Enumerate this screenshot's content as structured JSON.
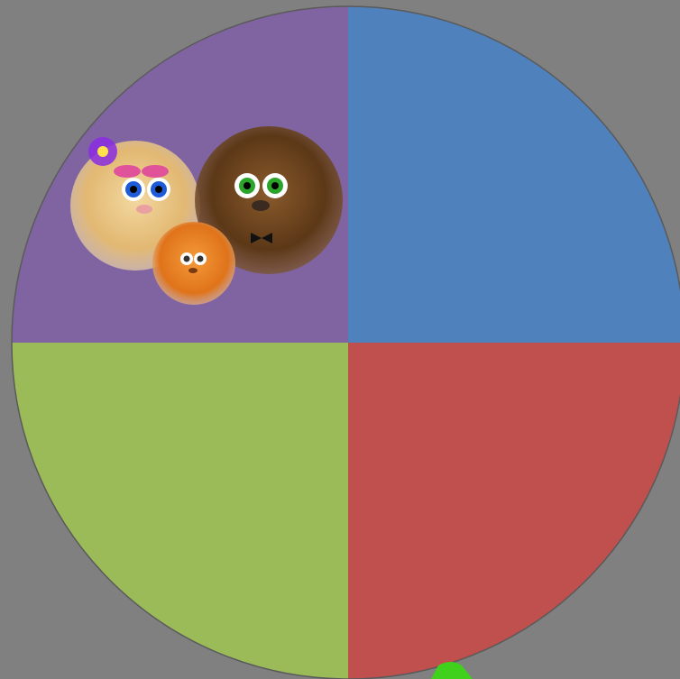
{
  "wheel": {
    "segments": [
      {
        "color": "#8064a2"
      },
      {
        "color": "#4f81bd"
      },
      {
        "color": "#c0504d"
      },
      {
        "color": "#9bbb59"
      }
    ]
  }
}
